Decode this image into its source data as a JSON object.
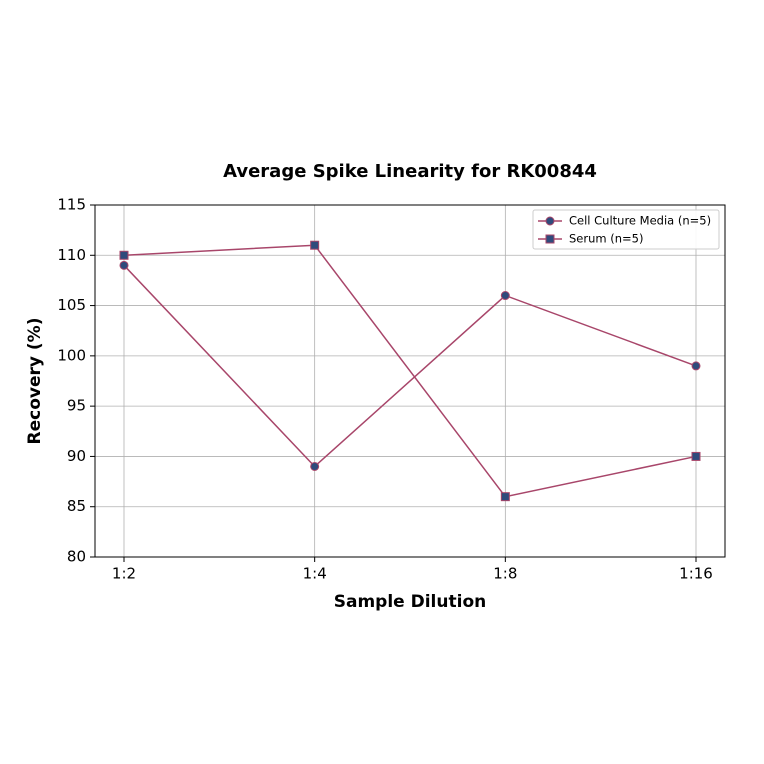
{
  "chart_data": {
    "type": "line",
    "title": "Average Spike Linearity for RK00844",
    "x_label": "Sample Dilution",
    "y_label": "Recovery (%)",
    "categories": [
      "1:2",
      "1:4",
      "1:8",
      "1:16"
    ],
    "series": [
      {
        "name": "Cell Culture Media (n=5)",
        "color": "#a8466a",
        "marker": "circle",
        "marker_color": "#2f4b7c",
        "values": [
          109,
          89,
          106,
          99
        ]
      },
      {
        "name": "Serum (n=5)",
        "color": "#a8466a",
        "marker": "square",
        "marker_color": "#2f4b7c",
        "values": [
          110,
          111,
          86,
          90
        ]
      }
    ],
    "ylim": [
      80,
      115
    ],
    "yticks": [
      80,
      85,
      90,
      95,
      100,
      105,
      110,
      115
    ],
    "grid": true,
    "legend": "upper right"
  }
}
